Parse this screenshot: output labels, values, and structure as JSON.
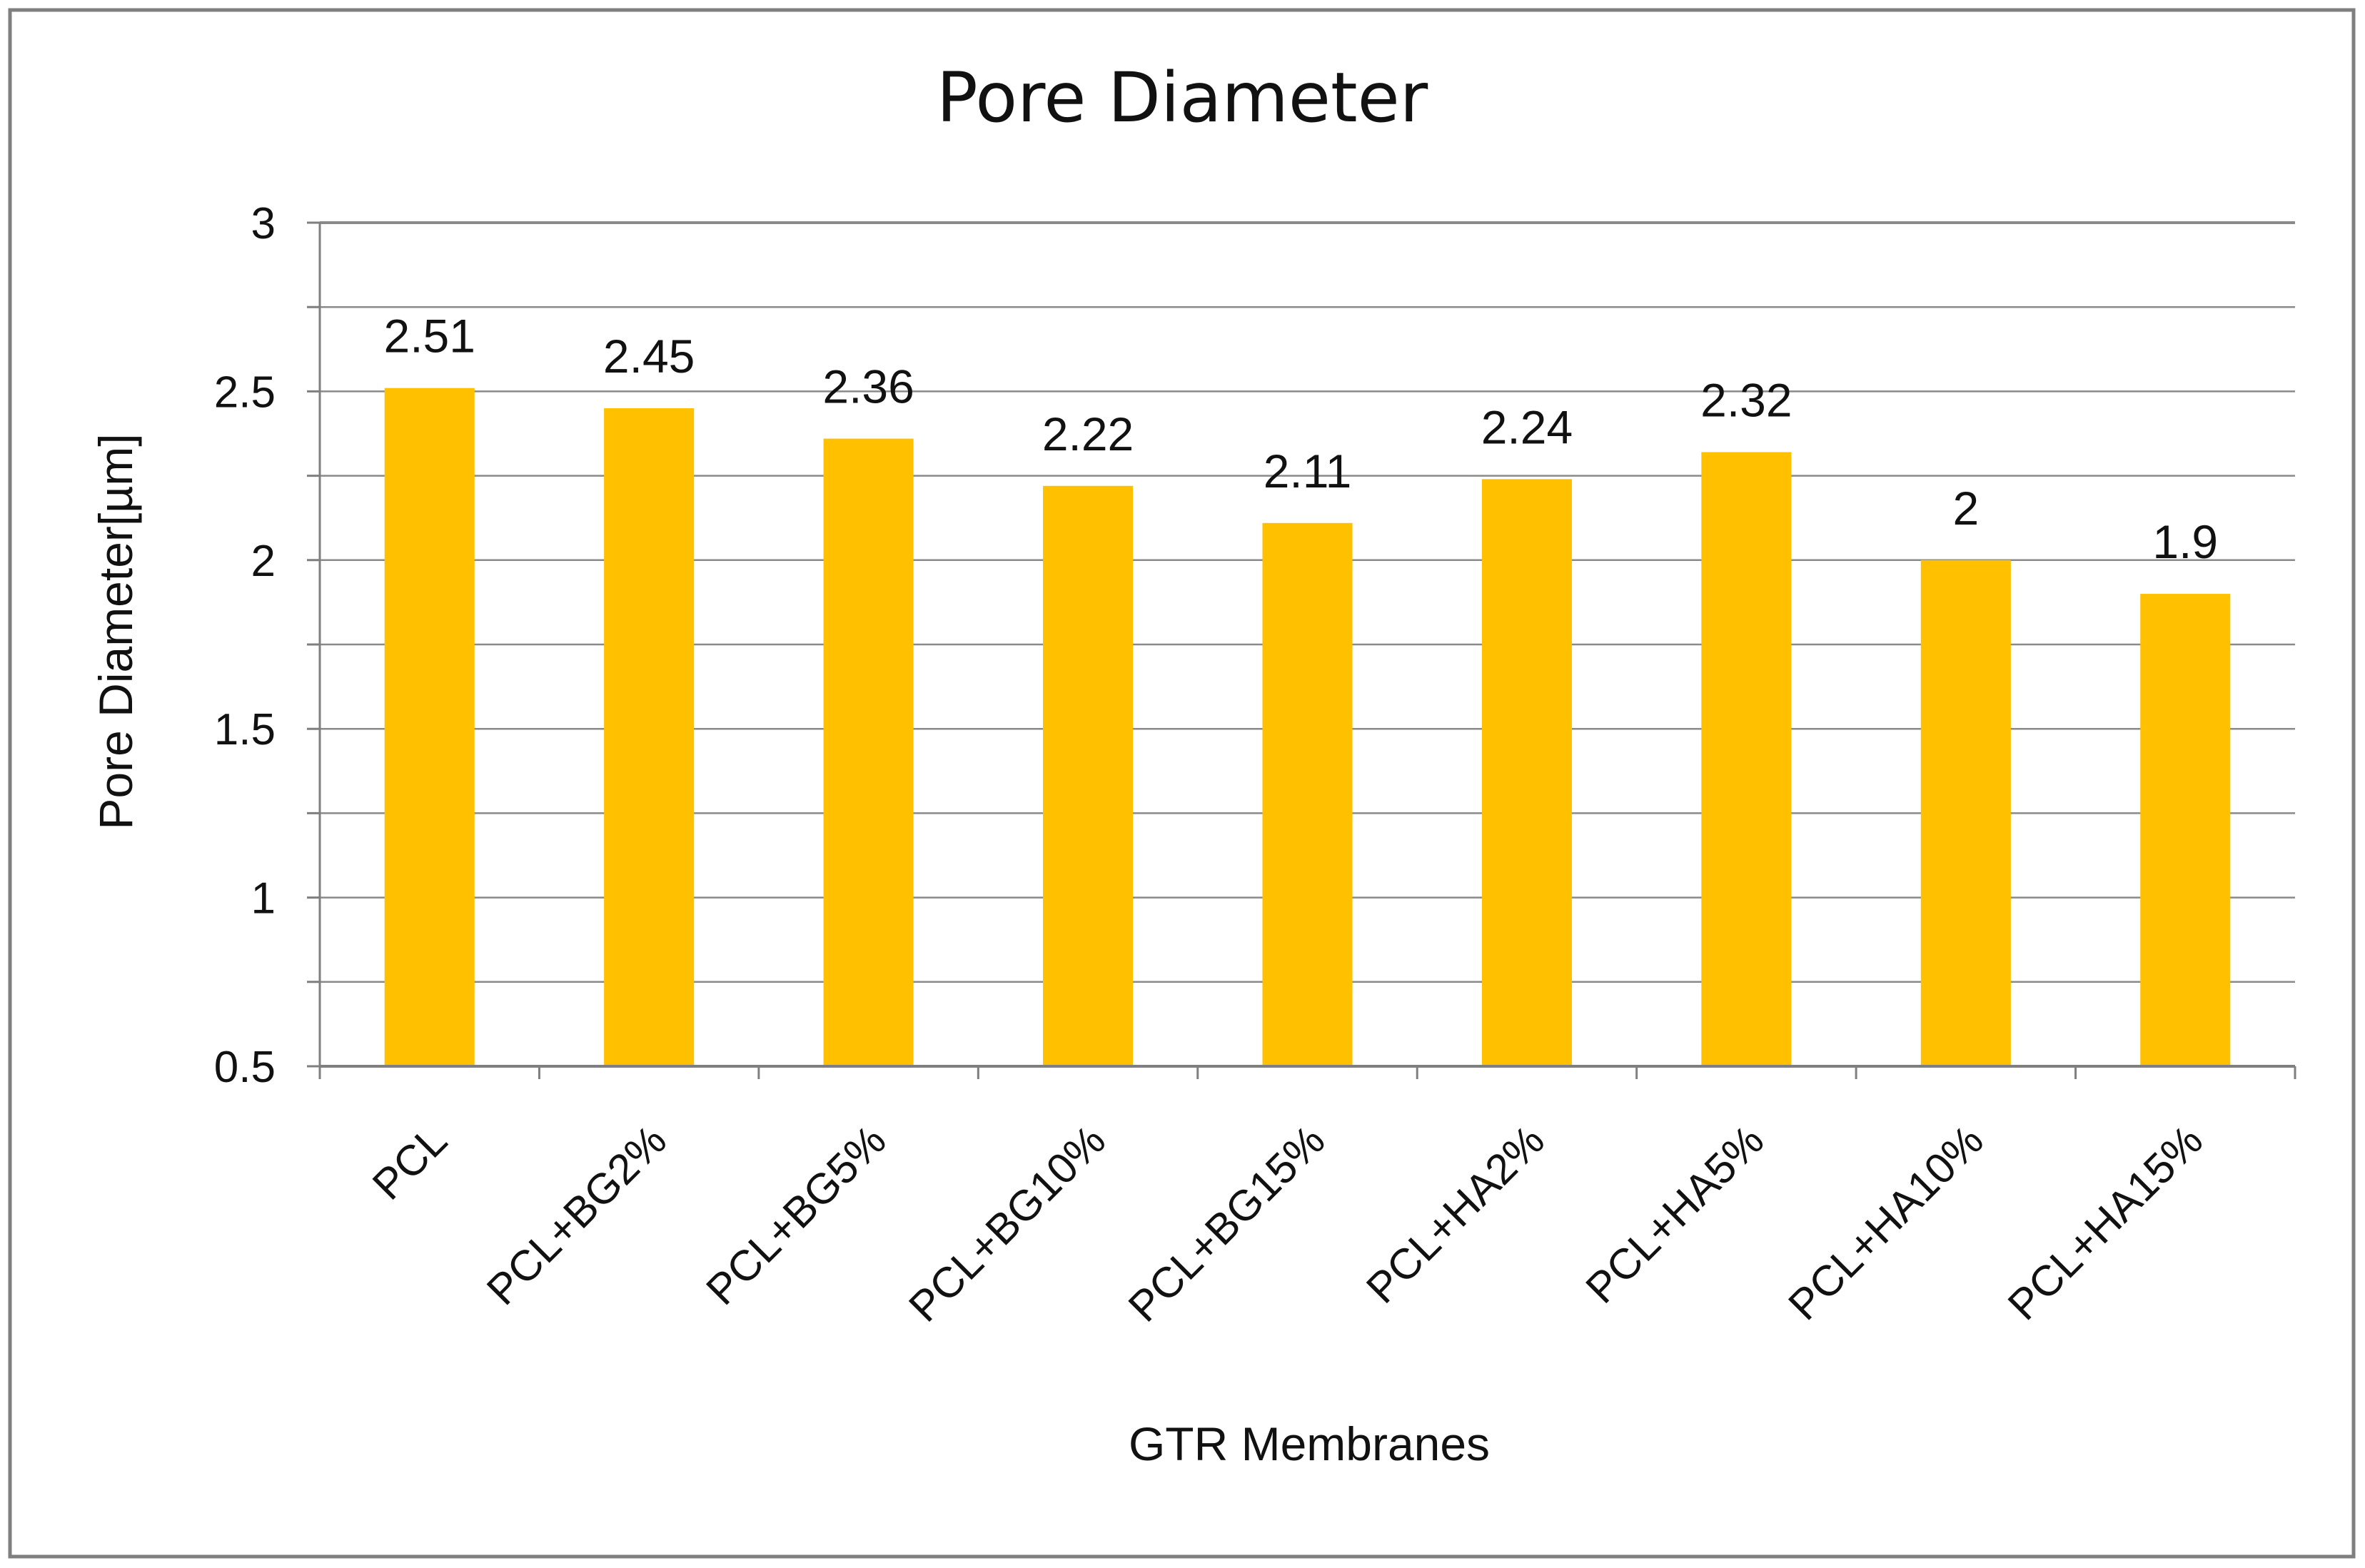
{
  "chart_data": {
    "type": "bar",
    "title": "Pore Diameter",
    "xlabel": "GTR Membranes",
    "ylabel": "Pore Diameter[µm]",
    "categories": [
      "PCL",
      "PCL+BG2%",
      "PCL+BG5%",
      "PCL+BG10%",
      "PCL+BG15%",
      "PCL+HA2%",
      "PCL+HA5%",
      "PCL+HA10%",
      "PCL+HA15%"
    ],
    "values": [
      2.51,
      2.45,
      2.36,
      2.22,
      2.11,
      2.24,
      2.32,
      2,
      1.9
    ],
    "data_labels": [
      "2.51",
      "2.45",
      "2.36",
      "2.22",
      "2.11",
      "2.24",
      "2.32",
      "2",
      "1.9"
    ],
    "ylim": [
      0.5,
      3
    ],
    "yticks": [
      0.5,
      0.75,
      1,
      1.25,
      1.5,
      1.75,
      2,
      2.25,
      2.5,
      2.75,
      3
    ],
    "ytick_labels": [
      "0.5",
      "",
      "1",
      "",
      "1.5",
      "",
      "2",
      "",
      "2.5",
      "",
      "3"
    ],
    "grid": true,
    "legend": "none",
    "colors": {
      "bar": "#FFC000",
      "grid": "#8a8a8a",
      "axis": "#7f7f7f",
      "frame": "#7f7f7f",
      "text": "#111111"
    }
  }
}
